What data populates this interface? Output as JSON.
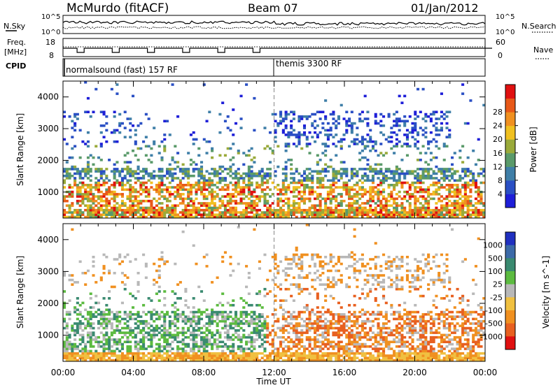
{
  "header": {
    "station": "McMurdo (fitACF)",
    "beam": "Beam 07",
    "date": "01/Jan/2012"
  },
  "top_panels": {
    "nsky_label": "N.Sky",
    "nsearch_label": "N.Search",
    "nsky_ticks": [
      "10^5",
      "10^0"
    ],
    "nsearch_ticks": [
      "10^5",
      "10^0"
    ],
    "freq_label_line1": "Freq.",
    "freq_label_line2": "[MHz]",
    "freq_ticks": [
      "18",
      "8"
    ],
    "nave_label": "Nave",
    "nave_ticks": [
      "60",
      "0"
    ],
    "cpid_label": "CPID",
    "cpid_segments": [
      {
        "label": "normalsound (fast) 157 RF",
        "start_hour": 0
      },
      {
        "label": "themis 3300 RF",
        "start_hour": 12
      }
    ]
  },
  "chart_data": [
    {
      "type": "heatmap",
      "name": "power",
      "ylabel": "Slant Range [km]",
      "xlabel": "Time UT",
      "x_range_hours": [
        0,
        24
      ],
      "y_range_km": [
        180,
        4500
      ],
      "y_ticks": [
        1000,
        2000,
        3000,
        4000
      ],
      "x_ticks": [
        "00:00",
        "04:00",
        "08:00",
        "12:00",
        "16:00",
        "20:00",
        "00:00"
      ],
      "colorbar": {
        "label": "Power [dB]",
        "ticks": [
          4,
          8,
          12,
          16,
          20,
          24,
          28
        ],
        "colors": [
          "#1e1ed8",
          "#2a4fc4",
          "#3f7fa8",
          "#5a9a6a",
          "#9aaa3a",
          "#f0c020",
          "#f09020",
          "#e85818",
          "#e01010"
        ]
      }
    },
    {
      "type": "heatmap",
      "name": "velocity",
      "ylabel": "Slant Range [km]",
      "xlabel": "Time UT",
      "x_range_hours": [
        0,
        24
      ],
      "y_range_km": [
        180,
        4500
      ],
      "y_ticks": [
        1000,
        2000,
        3000,
        4000
      ],
      "x_ticks": [
        "00:00",
        "04:00",
        "08:00",
        "12:00",
        "16:00",
        "20:00",
        "00:00"
      ],
      "colorbar": {
        "label": "Velocity [m s^-1]",
        "ticks": [
          "1000",
          "500",
          "100",
          "25",
          "-25",
          "-100",
          "-500",
          "-1000"
        ],
        "colors": [
          "#2030c0",
          "#3c6aa8",
          "#3a8a70",
          "#5cbb40",
          "#b8b8b8",
          "#f0c040",
          "#f09020",
          "#e86020",
          "#e01010"
        ]
      }
    }
  ],
  "axis": {
    "xlabel": "Time UT"
  }
}
